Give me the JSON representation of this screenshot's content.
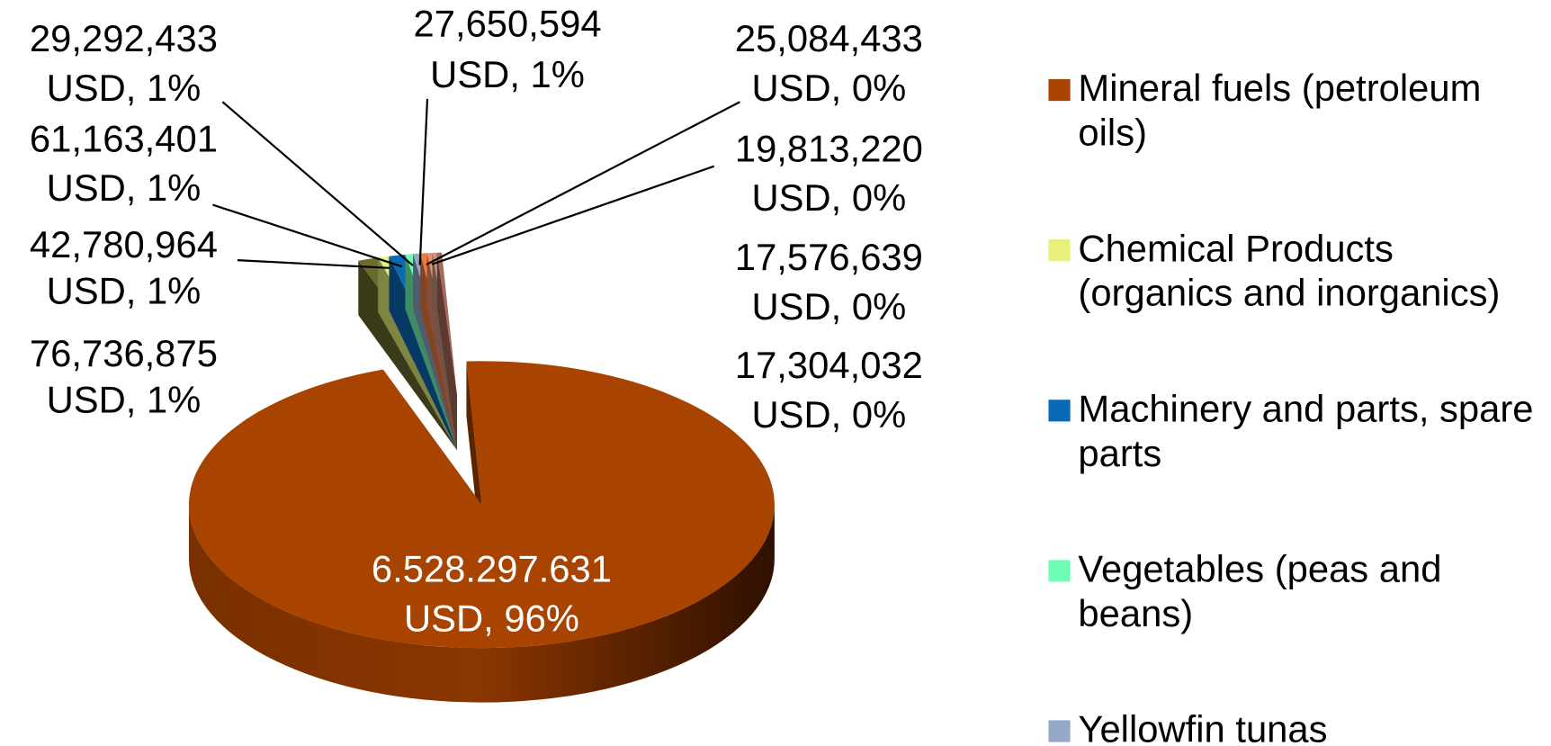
{
  "chart_data": {
    "type": "pie3d",
    "categories": [
      "Mineral fuels (petroleum oils)",
      null,
      "Chemical Products (organics and inorganics)",
      "Machinery and parts, spare parts",
      "Vegetables (peas and beans)",
      "Yellowfin tunas",
      null,
      null,
      null,
      null
    ],
    "values": [
      6528297631,
      76736875,
      42780964,
      61163401,
      29292433,
      27650594,
      25084433,
      19813220,
      17576639,
      17304032
    ],
    "value_labels": [
      [
        "6.528.297.631",
        "USD, 96%"
      ],
      [
        "76,736,875",
        "USD, 1%"
      ],
      [
        "42,780,964",
        "USD, 1%"
      ],
      [
        "61,163,401",
        "USD, 1%"
      ],
      [
        "29,292,433",
        "USD, 1%"
      ],
      [
        "27,650,594",
        "USD, 1%"
      ],
      [
        "25,084,433",
        "USD, 0%"
      ],
      [
        "19,813,220",
        "USD, 0%"
      ],
      [
        "17,576,639",
        "USD, 0%"
      ],
      [
        "17,304,032",
        "USD, 0%"
      ]
    ],
    "colors": [
      "#a84300",
      "#6b6b2e",
      "#e8f07a",
      "#0a6ab8",
      "#6effb4",
      "#94a8c8",
      "#f07a3c",
      "#e89070",
      "#c89880",
      "#a86a5a"
    ]
  }
}
